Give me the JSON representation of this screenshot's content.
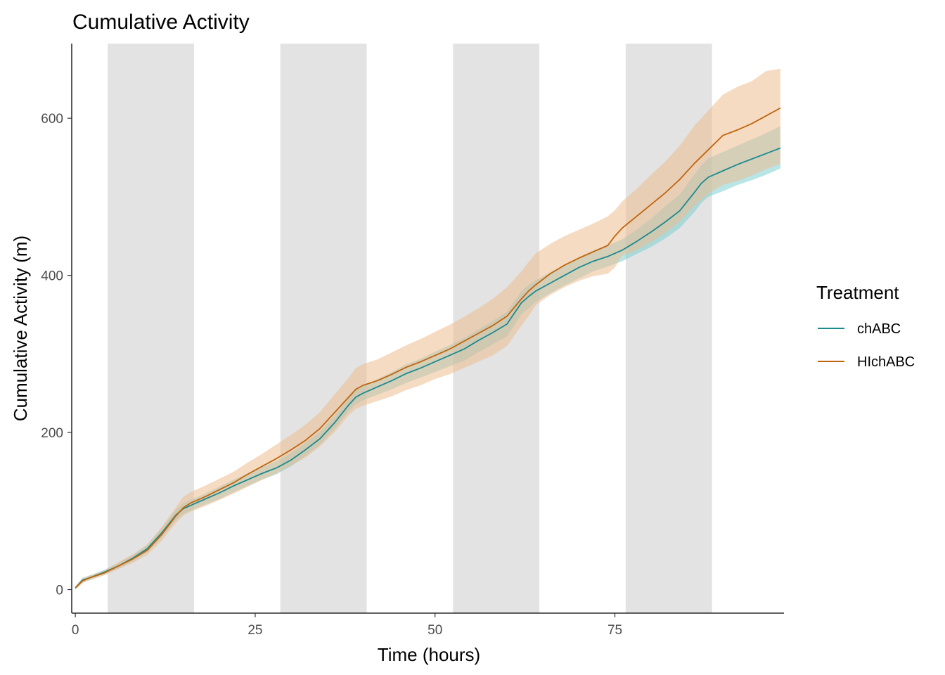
{
  "chart_data": {
    "type": "line",
    "title": "Cumulative Activity",
    "xlabel": "Time (hours)",
    "ylabel": "Cumulative Activity (m)",
    "xlim": [
      -0.5,
      98.5
    ],
    "ylim": [
      -30,
      695
    ],
    "x_ticks": [
      0,
      25,
      50,
      75
    ],
    "y_ticks": [
      0,
      200,
      400,
      600
    ],
    "grid": false,
    "legend": {
      "title": "Treatment",
      "position": "right"
    },
    "dark_periods": [
      [
        4.5,
        16.5
      ],
      [
        28.5,
        40.5
      ],
      [
        52.5,
        64.5
      ],
      [
        76.5,
        88.5
      ]
    ],
    "dark_period_color": "#e3e3e3",
    "series": [
      {
        "name": "chABC",
        "color": "#1b8a8f",
        "band_color": "#7ecfd1",
        "x": [
          0,
          1,
          2,
          4,
          6,
          8,
          10,
          12,
          14,
          15,
          16,
          18,
          20,
          22,
          24,
          26,
          28,
          30,
          32,
          34,
          36,
          38,
          39,
          40,
          42,
          44,
          46,
          48,
          50,
          52,
          54,
          56,
          58,
          60,
          62,
          63,
          64,
          66,
          68,
          70,
          72,
          74,
          76,
          78,
          80,
          82,
          84,
          86,
          87,
          88,
          90,
          92,
          94,
          96,
          98
        ],
        "y": [
          2,
          12,
          15,
          22,
          30,
          40,
          52,
          72,
          95,
          103,
          107,
          115,
          123,
          132,
          140,
          148,
          155,
          165,
          178,
          192,
          212,
          235,
          245,
          250,
          258,
          266,
          275,
          282,
          290,
          298,
          306,
          317,
          327,
          338,
          365,
          373,
          380,
          390,
          400,
          410,
          418,
          424,
          432,
          443,
          455,
          468,
          482,
          505,
          517,
          525,
          533,
          541,
          548,
          555,
          562
        ],
        "lower": [
          0,
          9,
          12,
          19,
          27,
          36,
          47,
          66,
          88,
          96,
          100,
          108,
          115,
          124,
          132,
          140,
          147,
          157,
          170,
          184,
          204,
          227,
          236,
          241,
          248,
          255,
          263,
          270,
          277,
          284,
          291,
          302,
          312,
          322,
          350,
          358,
          366,
          377,
          387,
          396,
          405,
          411,
          418,
          427,
          436,
          447,
          460,
          480,
          492,
          500,
          507,
          515,
          521,
          528,
          536
        ],
        "upper": [
          4,
          15,
          18,
          25,
          34,
          44,
          57,
          78,
          102,
          110,
          114,
          122,
          131,
          140,
          148,
          156,
          164,
          174,
          187,
          201,
          221,
          244,
          254,
          259,
          268,
          277,
          287,
          294,
          303,
          311,
          320,
          331,
          342,
          354,
          380,
          388,
          394,
          404,
          413,
          423,
          432,
          438,
          446,
          458,
          472,
          488,
          503,
          528,
          540,
          549,
          557,
          565,
          573,
          581,
          590
        ]
      },
      {
        "name": "HIchABC",
        "color": "#c0650c",
        "band_color": "#efbe92",
        "x": [
          0,
          1,
          2,
          4,
          6,
          8,
          10,
          12,
          14,
          15,
          16,
          18,
          20,
          22,
          24,
          26,
          28,
          30,
          32,
          34,
          36,
          38,
          39,
          40,
          42,
          44,
          46,
          48,
          50,
          52,
          54,
          56,
          58,
          60,
          62,
          63,
          64,
          66,
          68,
          70,
          72,
          74,
          75,
          76,
          78,
          80,
          82,
          84,
          86,
          88,
          90,
          92,
          94,
          96,
          98
        ],
        "y": [
          2,
          11,
          15,
          21,
          30,
          39,
          50,
          70,
          94,
          104,
          110,
          118,
          127,
          136,
          147,
          157,
          167,
          178,
          190,
          205,
          225,
          245,
          255,
          260,
          266,
          274,
          283,
          290,
          298,
          306,
          316,
          326,
          336,
          348,
          370,
          380,
          388,
          402,
          413,
          422,
          430,
          438,
          450,
          460,
          475,
          490,
          505,
          522,
          542,
          560,
          578,
          585,
          593,
          603,
          613
        ],
        "lower": [
          0,
          8,
          12,
          18,
          26,
          34,
          44,
          62,
          85,
          94,
          99,
          106,
          114,
          122,
          131,
          140,
          148,
          158,
          168,
          182,
          200,
          222,
          230,
          234,
          240,
          246,
          254,
          260,
          268,
          274,
          282,
          290,
          298,
          310,
          336,
          348,
          362,
          375,
          385,
          393,
          399,
          402,
          410,
          425,
          432,
          442,
          454,
          468,
          488,
          504,
          515,
          520,
          527,
          535,
          542
        ],
        "upper": [
          4,
          14,
          18,
          24,
          35,
          45,
          57,
          80,
          105,
          118,
          124,
          132,
          141,
          150,
          162,
          173,
          185,
          197,
          210,
          226,
          248,
          270,
          282,
          287,
          293,
          302,
          311,
          319,
          328,
          337,
          347,
          358,
          370,
          385,
          405,
          417,
          428,
          440,
          450,
          458,
          466,
          475,
          483,
          494,
          510,
          528,
          545,
          565,
          590,
          610,
          630,
          640,
          647,
          660,
          663
        ]
      }
    ]
  }
}
